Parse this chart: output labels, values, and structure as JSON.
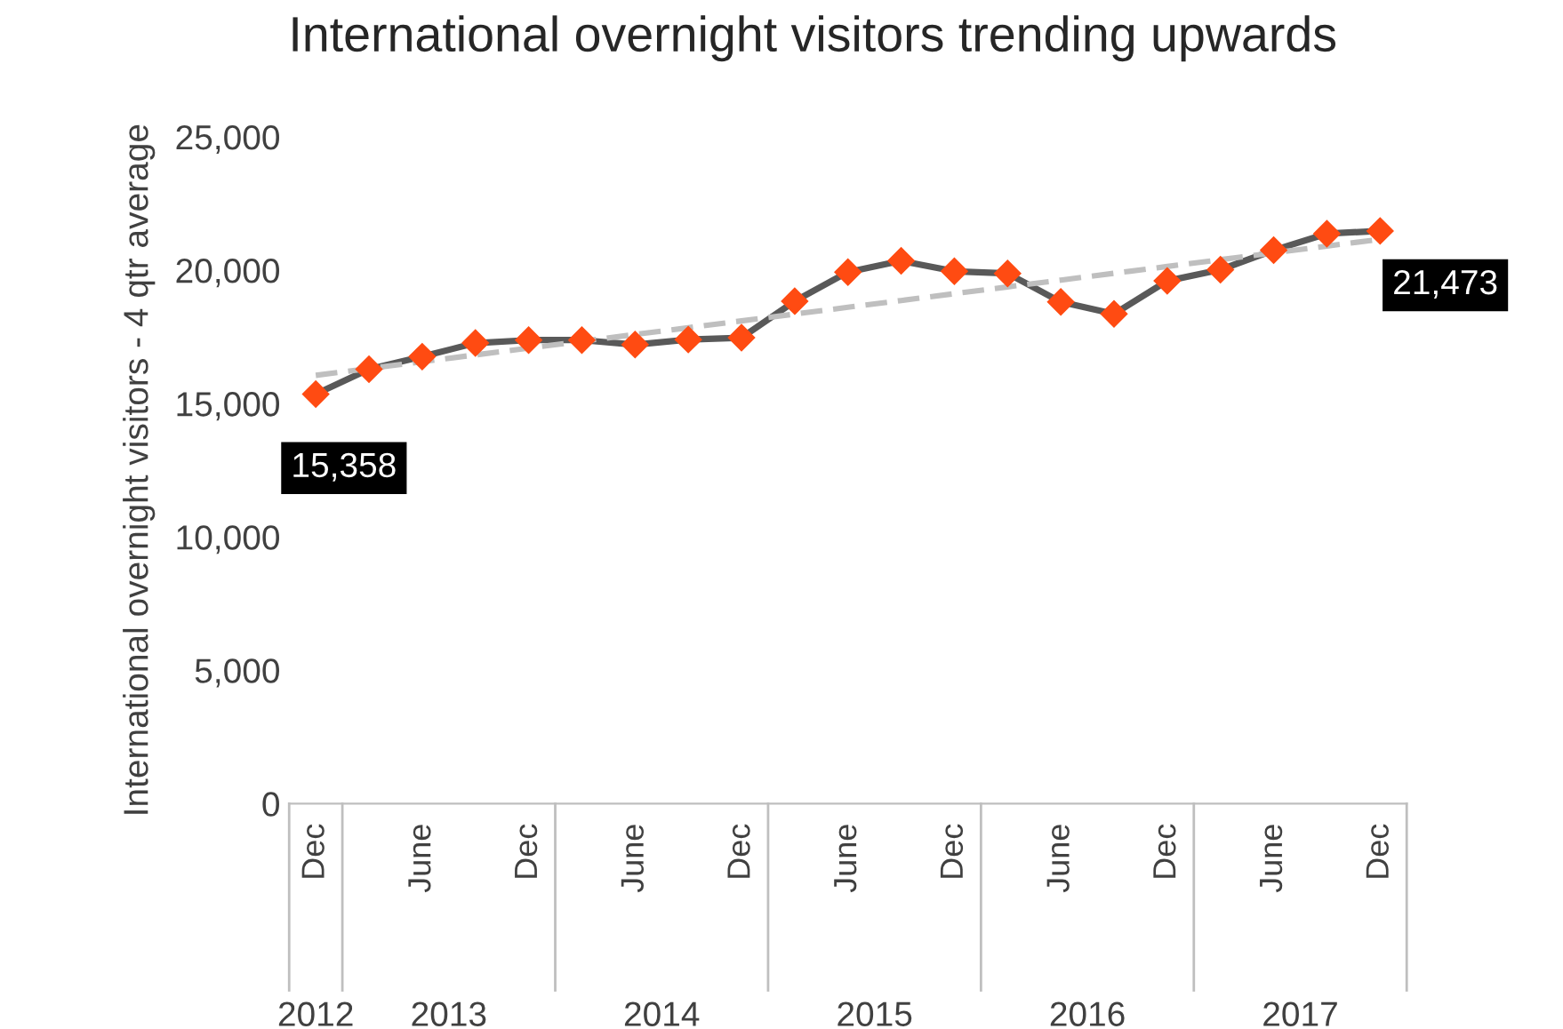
{
  "chart_data": {
    "type": "line",
    "title": "International overnight visitors trending upwards",
    "ylabel": "International overnight visitors - 4 qtr average",
    "categories": [
      "Dec",
      null,
      "June",
      null,
      "Dec",
      null,
      "June",
      null,
      "Dec",
      null,
      "June",
      null,
      "Dec",
      null,
      "June",
      null,
      "Dec",
      null,
      "June",
      null,
      "Dec"
    ],
    "annotations": [
      "2012",
      "2013",
      "2014",
      "2015",
      "2016",
      "2017"
    ],
    "series": [
      {
        "color": "#595959",
        "colors": [
          "#ff4b12",
          "#ff4b12",
          "#ff4b12",
          "#ff4b12",
          "#ff4b12",
          "#ff4b12",
          "#ff4b12",
          "#ff4b12",
          "#ff4b12",
          "#ff4b12",
          "#ff4b12",
          "#ff4b12",
          "#ff4b12",
          "#ff4b12",
          "#ff4b12",
          "#ff4b12",
          "#ff4b12",
          "#ff4b12",
          "#ff4b12",
          "#ff4b12",
          "#ff4b12"
        ],
        "marker": "diamond",
        "line_style": "solid",
        "values": [
          15358,
          16290,
          16760,
          17270,
          17380,
          17380,
          17210,
          17400,
          17470,
          18840,
          19930,
          20350,
          19960,
          19880,
          18810,
          18360,
          19600,
          20020,
          20750,
          21370,
          21473
        ],
        "value_labels": [
          "15,358",
          null,
          null,
          null,
          null,
          null,
          null,
          null,
          null,
          null,
          null,
          null,
          null,
          null,
          null,
          null,
          null,
          null,
          null,
          null,
          "21,473"
        ]
      },
      {
        "type": "line",
        "color": "#bfbfbf",
        "marker": "none",
        "line_style": "dashed",
        "values": [
          16060,
          16315,
          16570,
          16825,
          17080,
          17335,
          17590,
          17845,
          18100,
          18355,
          18610,
          18865,
          19120,
          19375,
          19630,
          19885,
          20140,
          20395,
          20650,
          20905,
          21160
        ]
      }
    ],
    "ylim": [
      0,
      25000
    ],
    "yticks": [
      {
        "value": 0,
        "label": "0"
      },
      {
        "value": 5000,
        "label": "5,000"
      },
      {
        "value": 10000,
        "label": "10,000"
      },
      {
        "value": 15000,
        "label": "15,000"
      },
      {
        "value": 20000,
        "label": "20,000"
      },
      {
        "value": 25000,
        "label": "25,000"
      }
    ],
    "grid": false,
    "legend": false
  }
}
